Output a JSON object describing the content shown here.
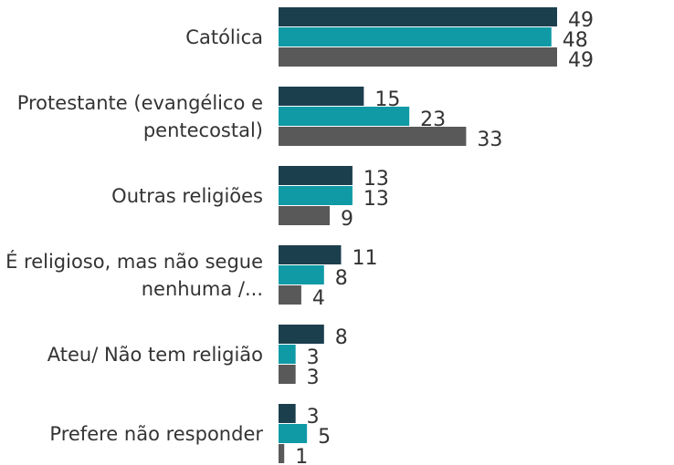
{
  "chart_data": {
    "type": "barh",
    "categories": [
      "Católica",
      "Protestante (evangélico e pentecostal)",
      "Outras religiões",
      "É religioso, mas não segue nenhuma /...",
      "Ateu/ Não tem religião",
      "Prefere não responder"
    ],
    "series": [
      {
        "color": "#1c3f4e",
        "values": [
          49,
          15,
          13,
          11,
          8,
          3
        ]
      },
      {
        "color": "#0f9aa6",
        "values": [
          48,
          23,
          13,
          8,
          3,
          5
        ]
      },
      {
        "color": "#595959",
        "values": [
          49,
          33,
          9,
          4,
          3,
          1
        ]
      }
    ]
  }
}
